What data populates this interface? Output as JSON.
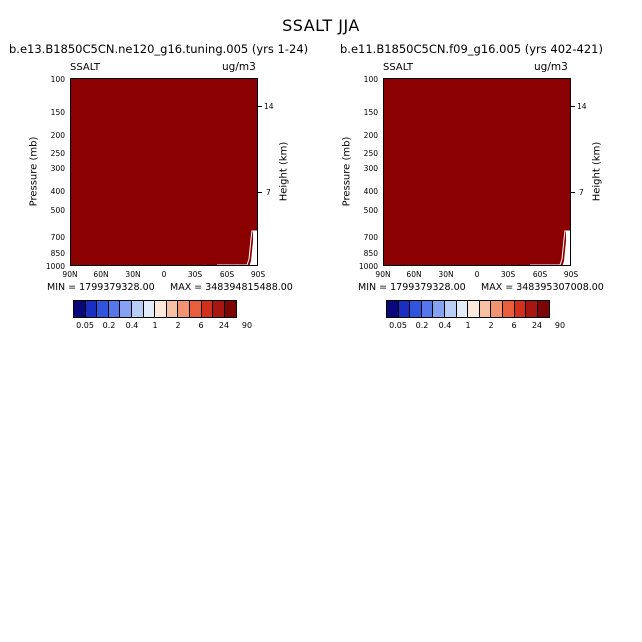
{
  "title": "SSALT JJA",
  "colorbar": {
    "colors": [
      "#08087a",
      "#1a2ec4",
      "#2f54dd",
      "#5577ea",
      "#86a2f2",
      "#b8cdf8",
      "#e3ecfb",
      "#fce9dc",
      "#f7c1a3",
      "#f19270",
      "#ea5e3b",
      "#d3301b",
      "#a9150f",
      "#7c0606"
    ],
    "labels": [
      "0.05",
      "0.2",
      "0.4",
      "1",
      "2",
      "6",
      "24",
      "90"
    ]
  },
  "chart_data": [
    {
      "type": "heatmap",
      "title": "b.e13.B1850C5CN.ne120_g16.tuning.005 (yrs 1-24)",
      "variable": "SSALT",
      "units": "ug/m3",
      "ylabel": "Pressure (mb)",
      "ylabel_right": "Height (km)",
      "yticks": [
        "100",
        "150",
        "200",
        "250",
        "300",
        "400",
        "500",
        "700",
        "850",
        "1000"
      ],
      "yticks_right": [
        "14",
        "7"
      ],
      "xticks": [
        "90N",
        "60N",
        "30N",
        "0",
        "30S",
        "60S",
        "90S"
      ],
      "min_label": "MIN = 1799379328.00",
      "max_label": "MAX = 348394815488.00",
      "fill_color": "#8b0000"
    },
    {
      "type": "heatmap",
      "title": "b.e11.B1850C5CN.f09_g16.005 (yrs 402-421)",
      "variable": "SSALT",
      "units": "ug/m3",
      "ylabel": "Pressure (mb)",
      "ylabel_right": "Height (km)",
      "yticks": [
        "100",
        "150",
        "200",
        "250",
        "300",
        "400",
        "500",
        "700",
        "850",
        "1000"
      ],
      "yticks_right": [
        "14",
        "7"
      ],
      "xticks": [
        "90N",
        "60N",
        "30N",
        "0",
        "30S",
        "60S",
        "90S"
      ],
      "min_label": "MIN = 1799379328.00",
      "max_label": "MAX = 348395307008.00",
      "fill_color": "#8b0000"
    }
  ]
}
